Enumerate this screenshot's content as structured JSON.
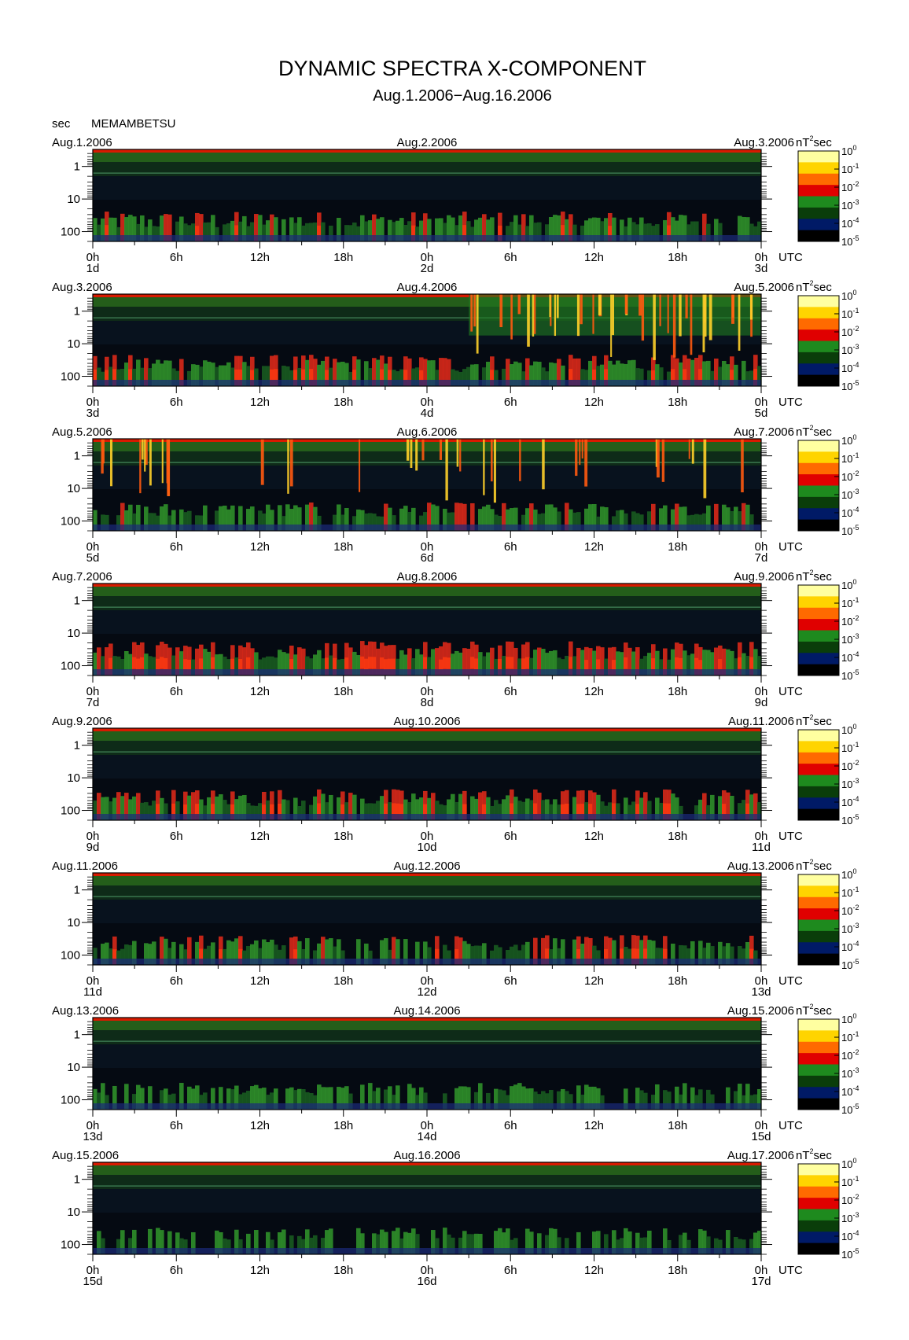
{
  "header": {
    "title": "DYNAMIC SPECTRA X-COMPONENT",
    "subtitle": "Aug.1.2006−Aug.16.2006",
    "yunit_label": "sec",
    "station": "MEMAMBETSU"
  },
  "chart_data": {
    "type": "heatmap",
    "title": "DYNAMIC SPECTRA X-COMPONENT",
    "subtitle": "Aug.1.2006−Aug.16.2006",
    "station": "MEMAMBETSU",
    "ylabel": "sec",
    "y_scale": "log",
    "y_direction": "period increases downward",
    "y_ticks": [
      1,
      10,
      100
    ],
    "y_tick_labels": [
      "1",
      "10",
      "100"
    ],
    "x_ticks": [
      "0h",
      "6h",
      "12h",
      "18h",
      "0h",
      "6h",
      "12h",
      "18h",
      "0h"
    ],
    "x_unit": "UTC",
    "colorbar": {
      "unit": "nT",
      "unit_power": "2",
      "unit_suffix": "sec",
      "scale": "log",
      "ticks": [
        {
          "base": "10",
          "exp": "0"
        },
        {
          "base": "10",
          "exp": "-1"
        },
        {
          "base": "10",
          "exp": "-2"
        },
        {
          "base": "10",
          "exp": "-3"
        },
        {
          "base": "10",
          "exp": "-4"
        },
        {
          "base": "10",
          "exp": "-5"
        }
      ],
      "colors": [
        "#ffffa0",
        "#ffd400",
        "#ff6a00",
        "#e00000",
        "#1e8a1e",
        "#0a3d0a",
        "#001a66",
        "#000000"
      ]
    },
    "panels": [
      {
        "left_date": "Aug.1.2006",
        "mid_date": "Aug.2.2006",
        "right_date": "Aug.3.2006",
        "day_start": "1d",
        "day_mid": "2d",
        "day_end": "3d",
        "activity": 0.35,
        "storm": []
      },
      {
        "left_date": "Aug.3.2006",
        "mid_date": "Aug.4.2006",
        "right_date": "Aug.5.2006",
        "day_start": "3d",
        "day_mid": "4d",
        "day_end": "5d",
        "activity": 0.4,
        "storm": [
          27,
          48
        ]
      },
      {
        "left_date": "Aug.5.2006",
        "mid_date": "Aug.6.2006",
        "right_date": "Aug.7.2006",
        "day_start": "5d",
        "day_mid": "6d",
        "day_end": "7d",
        "activity": 0.3,
        "storm": [
          0,
          48
        ]
      },
      {
        "left_date": "Aug.7.2006",
        "mid_date": "Aug.8.2006",
        "right_date": "Aug.9.2006",
        "day_start": "7d",
        "day_mid": "8d",
        "day_end": "9d",
        "activity": 0.5,
        "storm": []
      },
      {
        "left_date": "Aug.9.2006",
        "mid_date": "Aug.10.2006",
        "right_date": "Aug.11.2006",
        "day_start": "9d",
        "day_mid": "10d",
        "day_end": "11d",
        "activity": 0.4,
        "storm": []
      },
      {
        "left_date": "Aug.11.2006",
        "mid_date": "Aug.12.2006",
        "right_date": "Aug.13.2006",
        "day_start": "11d",
        "day_mid": "12d",
        "day_end": "13d",
        "activity": 0.35,
        "storm": []
      },
      {
        "left_date": "Aug.13.2006",
        "mid_date": "Aug.14.2006",
        "right_date": "Aug.15.2006",
        "day_start": "13d",
        "day_mid": "14d",
        "day_end": "15d",
        "activity": 0.25,
        "storm": []
      },
      {
        "left_date": "Aug.15.2006",
        "mid_date": "Aug.16.2006",
        "right_date": "Aug.17.2006",
        "day_start": "15d",
        "day_mid": "16d",
        "day_end": "17d",
        "activity": 0.25,
        "storm": []
      }
    ]
  }
}
